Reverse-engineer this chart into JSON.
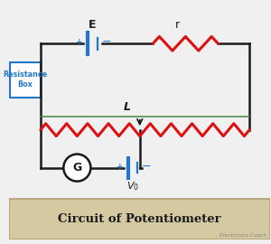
{
  "bg_color": "#f0f0f0",
  "title": "Circuit of Potentiometer",
  "title_bg": "#d4c9a0",
  "title_border": "#b0a070",
  "wire_color": "#1a1a1a",
  "blue_color": "#2277cc",
  "red_color": "#dd1111",
  "green_color": "#448844",
  "watermark": "Electronics Coach",
  "label_E": "E",
  "label_r": "r",
  "label_L": "L",
  "label_G": "G",
  "label_box": "Resistance\nBox",
  "lw_wire": 1.8,
  "lw_component": 2.2,
  "lw_zigzag": 2.2
}
